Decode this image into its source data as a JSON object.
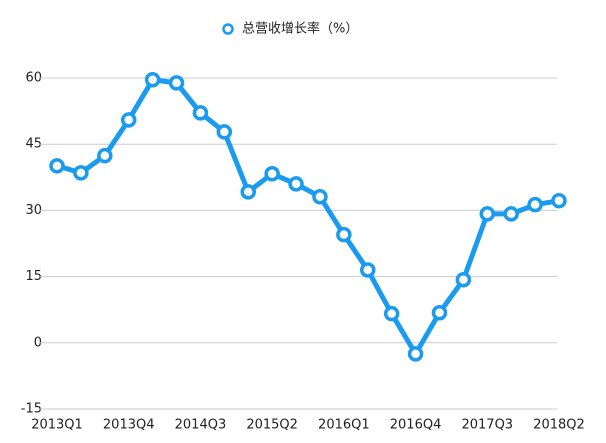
{
  "chart_data": {
    "type": "line",
    "categories": [
      "2013Q1",
      null,
      null,
      "2013Q4",
      null,
      null,
      "2014Q3",
      null,
      null,
      "2015Q2",
      null,
      null,
      "2016Q1",
      null,
      null,
      "2016Q4",
      null,
      null,
      "2017Q3",
      null,
      null,
      "2018Q2"
    ],
    "series": [
      {
        "name": "总营收增长率（%）",
        "color": "#1a9bf0",
        "values": [
          40.1,
          38.5,
          42.4,
          50.5,
          59.6,
          58.9,
          52.1,
          47.8,
          34.2,
          38.3,
          36.0,
          33.1,
          24.5,
          16.5,
          6.6,
          -2.5,
          6.8,
          14.3,
          29.2,
          29.2,
          31.3,
          32.2
        ]
      }
    ],
    "ylim": [
      -15,
      60
    ],
    "yticks": [
      -15,
      0,
      15,
      30,
      45,
      60
    ],
    "grid": true,
    "legend": "top"
  }
}
